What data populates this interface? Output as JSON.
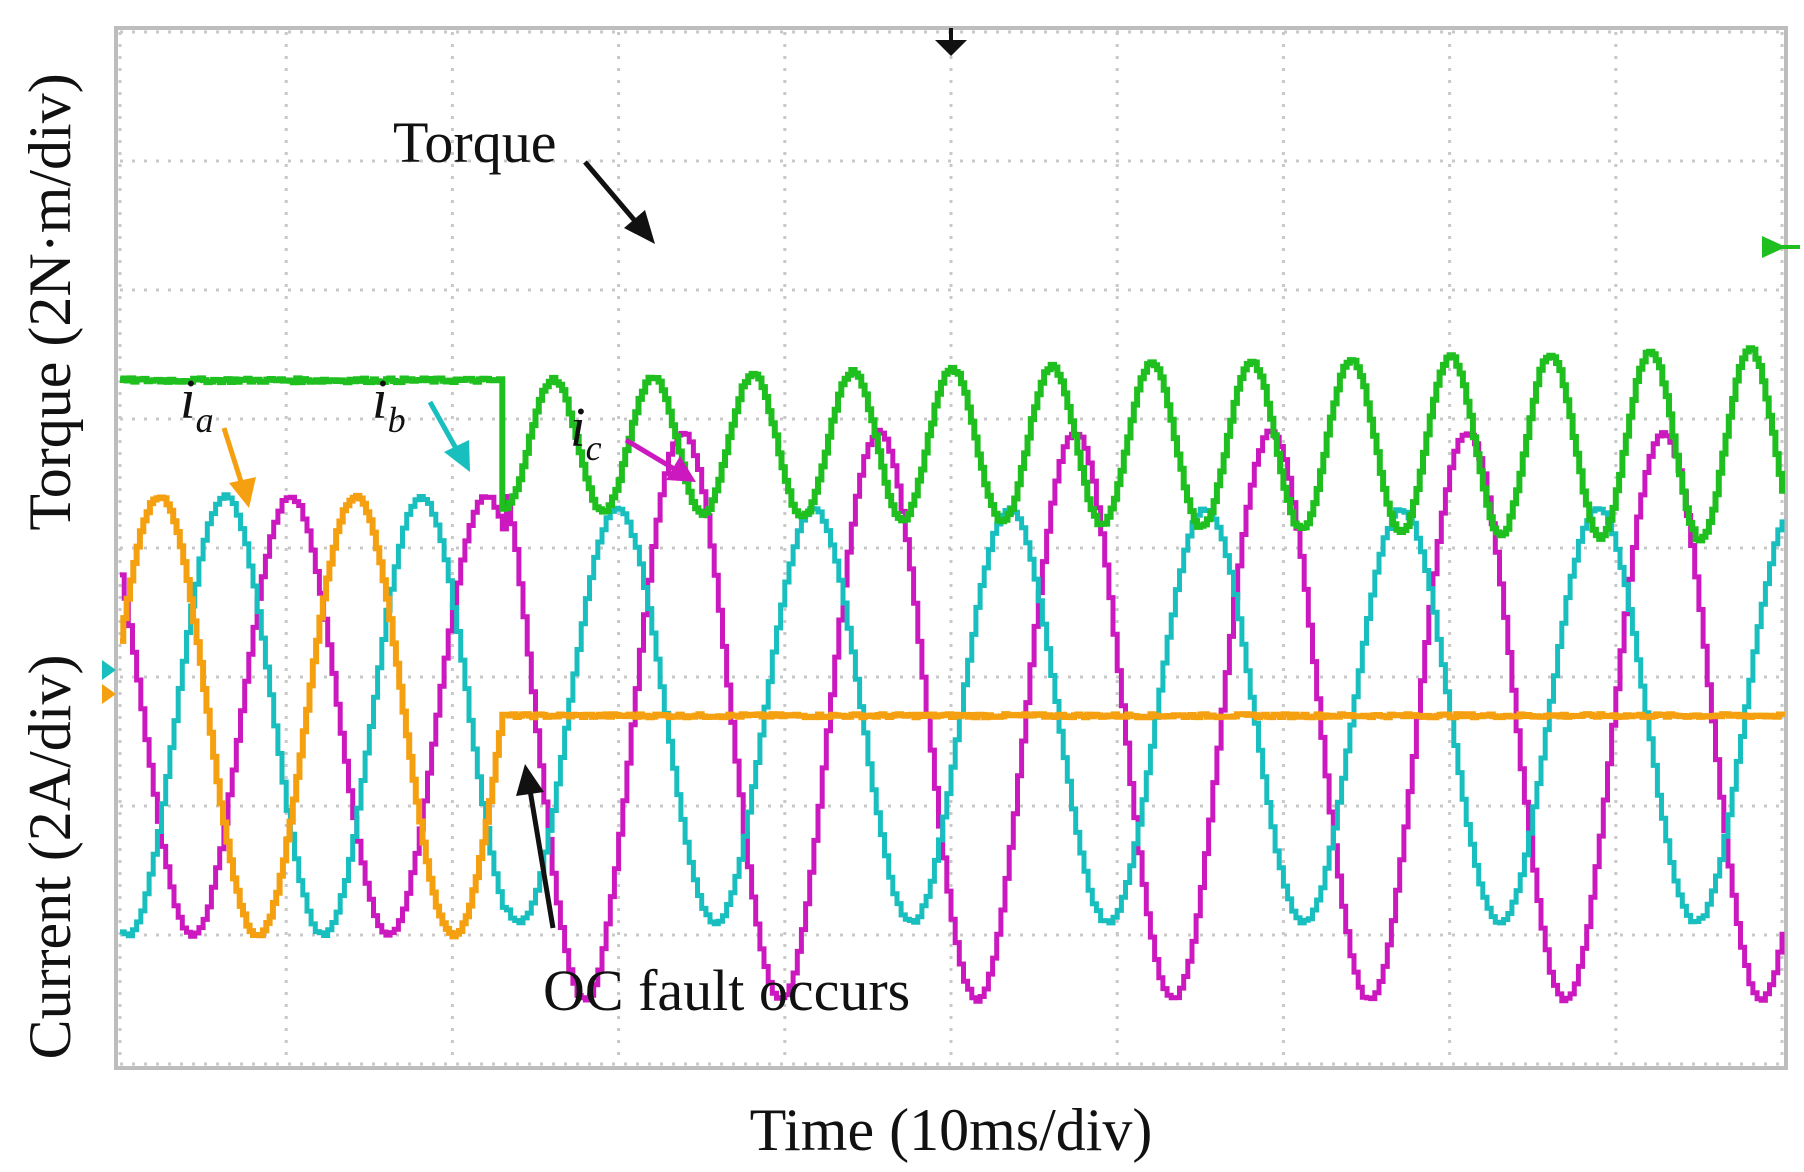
{
  "chart_data": {
    "type": "line",
    "title": "",
    "xlabel": "Time (10ms/div)",
    "ylabel_top": "Torque (2N·m/div)",
    "ylabel_bottom": "Current (2A/div)",
    "x_divisions": 10,
    "y_divisions": 8,
    "grid": true,
    "fault_time_div": 2.3,
    "series": [
      {
        "name": "Torque",
        "color": "#1fbf1f",
        "pre_fault_level_div": 5.3,
        "post_fault_mean_div": 4.8,
        "post_fault_amp_start_div": 0.5,
        "post_fault_amp_end_div": 0.75,
        "period_div": 0.6
      },
      {
        "name": "i",
        "subscript": "a",
        "color": "#f5a010",
        "amplitude_div": 1.7,
        "zero_div": 2.7,
        "period_div": 1.18,
        "post_fault_value_div": 2.7
      },
      {
        "name": "i",
        "subscript": "b",
        "color": "#19bfbf",
        "amplitude_pre_div": 1.7,
        "amplitude_post_div": 1.6,
        "zero_div": 2.7,
        "period_div": 1.18
      },
      {
        "name": "i",
        "subscript": "c",
        "color": "#cc19bf",
        "amplitude_pre_div": 1.7,
        "amplitude_post_div": 2.2,
        "zero_div": 2.7,
        "period_div": 1.18
      }
    ],
    "annotations": [
      {
        "text": "Torque"
      },
      {
        "text": "OC fault occurs"
      }
    ]
  }
}
